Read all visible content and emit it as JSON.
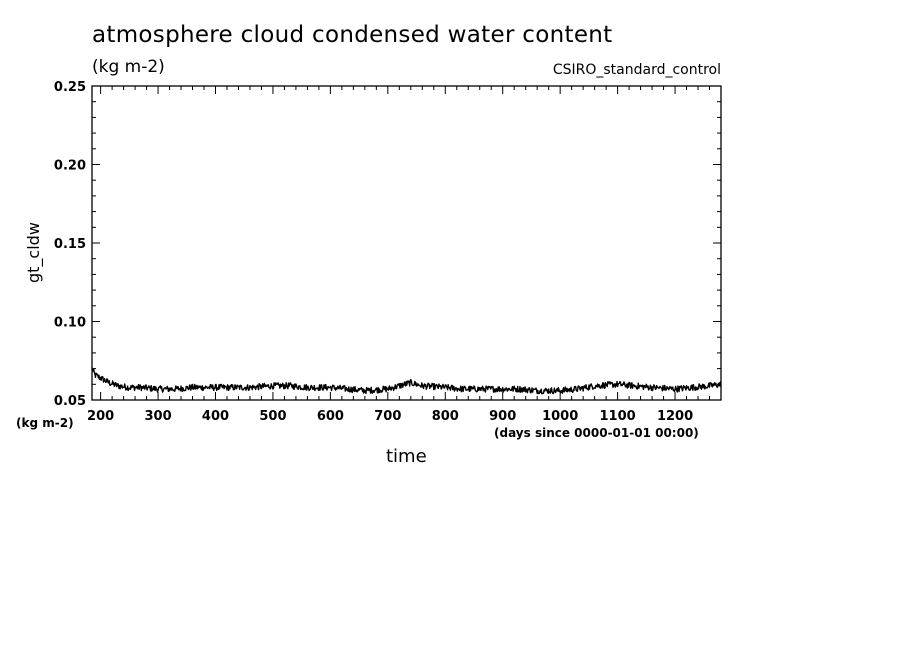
{
  "chart_data": {
    "type": "line",
    "title": "atmosphere cloud condensed water content",
    "subtitle": "(kg m-2)",
    "run_label": "CSIRO_standard_control",
    "ylabel": "gt_cldw",
    "yunit": "(kg m-2)",
    "xlabel": "time",
    "xunit": "(days since 0000-01-01 00:00)",
    "xlim": [
      185,
      1280
    ],
    "ylim": [
      0.05,
      0.25
    ],
    "xticks": [
      200,
      300,
      400,
      500,
      600,
      700,
      800,
      900,
      1000,
      1100,
      1200
    ],
    "yticks": [
      0.05,
      0.1,
      0.15,
      0.2,
      0.25
    ],
    "ytick_labels": [
      "0.05",
      "0.10",
      "0.15",
      "0.20",
      "0.25"
    ],
    "grid": false,
    "line_color": "#000000",
    "series": [
      {
        "x": [
          185,
          190,
          200,
          215,
          230,
          250,
          270,
          300,
          330,
          360,
          400,
          430,
          460,
          500,
          530,
          560,
          600,
          630,
          660,
          700,
          720,
          740,
          760,
          800,
          830,
          860,
          900,
          930,
          960,
          1000,
          1030,
          1060,
          1100,
          1130,
          1160,
          1200,
          1230,
          1260,
          1280
        ],
        "values": [
          0.07,
          0.066,
          0.064,
          0.061,
          0.059,
          0.058,
          0.058,
          0.057,
          0.057,
          0.058,
          0.058,
          0.058,
          0.058,
          0.059,
          0.059,
          0.058,
          0.058,
          0.057,
          0.056,
          0.057,
          0.059,
          0.061,
          0.059,
          0.058,
          0.057,
          0.057,
          0.057,
          0.057,
          0.056,
          0.056,
          0.057,
          0.059,
          0.06,
          0.059,
          0.058,
          0.057,
          0.058,
          0.059,
          0.06
        ]
      }
    ]
  }
}
